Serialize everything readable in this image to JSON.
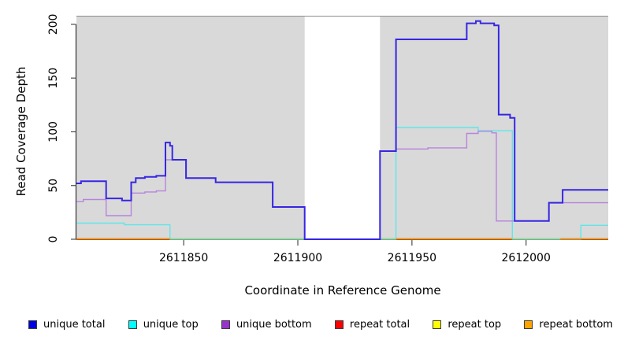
{
  "figure": {
    "xlabel": "Coordinate in Reference Genome",
    "ylabel": "Read Coverage Depth"
  },
  "chart_data": {
    "type": "line",
    "subtype": "step-coverage",
    "title": "",
    "xlabel": "Coordinate in Reference Genome",
    "ylabel": "Read Coverage Depth",
    "xlim": [
      2611803,
      2612036
    ],
    "ylim": [
      0,
      208
    ],
    "xticks": [
      2611850,
      2611900,
      2611950,
      2612000
    ],
    "yticks": [
      0,
      50,
      100,
      150,
      200
    ],
    "grid": false,
    "panel_background": "#d9d9d9",
    "panel_top_border_color": "#8c8c8c",
    "axis_color": "#333333",
    "tick_color": "#4d4d4d",
    "gap_region": {
      "x_start": 2611903,
      "x_end": 2611936,
      "color": "#ffffff"
    },
    "series": [
      {
        "name": "unique top",
        "color": "#5ee7e9",
        "width": 1.4,
        "x_end": 2612036,
        "points": [
          [
            2611803,
            15
          ],
          [
            2611824,
            13.5
          ],
          [
            2611844,
            0
          ],
          [
            2611943,
            104
          ],
          [
            2611979,
            101
          ],
          [
            2611994,
            0
          ],
          [
            2612024,
            13
          ]
        ]
      },
      {
        "name": "unique bottom",
        "color": "#b784dd",
        "width": 1.4,
        "x_end": 2612036,
        "points": [
          [
            2611803,
            35
          ],
          [
            2611806,
            37
          ],
          [
            2611816,
            22
          ],
          [
            2611827,
            43
          ],
          [
            2611833,
            44
          ],
          [
            2611838,
            45
          ],
          [
            2611842,
            74
          ],
          [
            2611851,
            57
          ],
          [
            2611864,
            53
          ],
          [
            2611889,
            30
          ],
          [
            2611903,
            0
          ],
          [
            2611936,
            82
          ],
          [
            2611943,
            84
          ],
          [
            2611957,
            85
          ],
          [
            2611974,
            98.5
          ],
          [
            2611979,
            100.5
          ],
          [
            2611985,
            99
          ],
          [
            2611987,
            17
          ],
          [
            2612010,
            34
          ]
        ]
      },
      {
        "name": "unique total",
        "color": "#3626e3",
        "width": 2,
        "x_end": 2612036,
        "points": [
          [
            2611803,
            52
          ],
          [
            2611805,
            54
          ],
          [
            2611816,
            38
          ],
          [
            2611823,
            36
          ],
          [
            2611827,
            53
          ],
          [
            2611829,
            57
          ],
          [
            2611833,
            58
          ],
          [
            2611838,
            59
          ],
          [
            2611842,
            90
          ],
          [
            2611844,
            87
          ],
          [
            2611845,
            74
          ],
          [
            2611851,
            57
          ],
          [
            2611864,
            53
          ],
          [
            2611889,
            30
          ],
          [
            2611903,
            0
          ],
          [
            2611936,
            82
          ],
          [
            2611943,
            186
          ],
          [
            2611974,
            201
          ],
          [
            2611978,
            203
          ],
          [
            2611980,
            201
          ],
          [
            2611986,
            199
          ],
          [
            2611988,
            116
          ],
          [
            2611993,
            113
          ],
          [
            2611995,
            17
          ],
          [
            2612010,
            34
          ],
          [
            2612016,
            46
          ]
        ]
      }
    ],
    "baseline_segments": [
      {
        "x_start": 2611803,
        "x_end": 2611844,
        "color": "#ff9015",
        "value": 0
      },
      {
        "x_start": 2611844,
        "x_end": 2611903,
        "color": "#9ad89a",
        "value": 0
      },
      {
        "x_start": 2611936,
        "x_end": 2611943,
        "color": "#9ad89a",
        "value": 0
      },
      {
        "x_start": 2611943,
        "x_end": 2611994,
        "color": "#ff9015",
        "value": 0
      },
      {
        "x_start": 2611994,
        "x_end": 2612015,
        "color": "#9ad89a",
        "value": 0
      },
      {
        "x_start": 2612015,
        "x_end": 2612036,
        "color": "#ff9015",
        "value": 0
      }
    ],
    "legend_position": "bottom"
  },
  "legend": {
    "items": [
      {
        "label": "unique total",
        "color": "#0000e0"
      },
      {
        "label": "unique top",
        "color": "#00ffff"
      },
      {
        "label": "unique bottom",
        "color": "#9932cc"
      },
      {
        "label": "repeat total",
        "color": "#ff0000"
      },
      {
        "label": "repeat top",
        "color": "#ffff00"
      },
      {
        "label": "repeat bottom",
        "color": "#ffa500"
      }
    ]
  }
}
